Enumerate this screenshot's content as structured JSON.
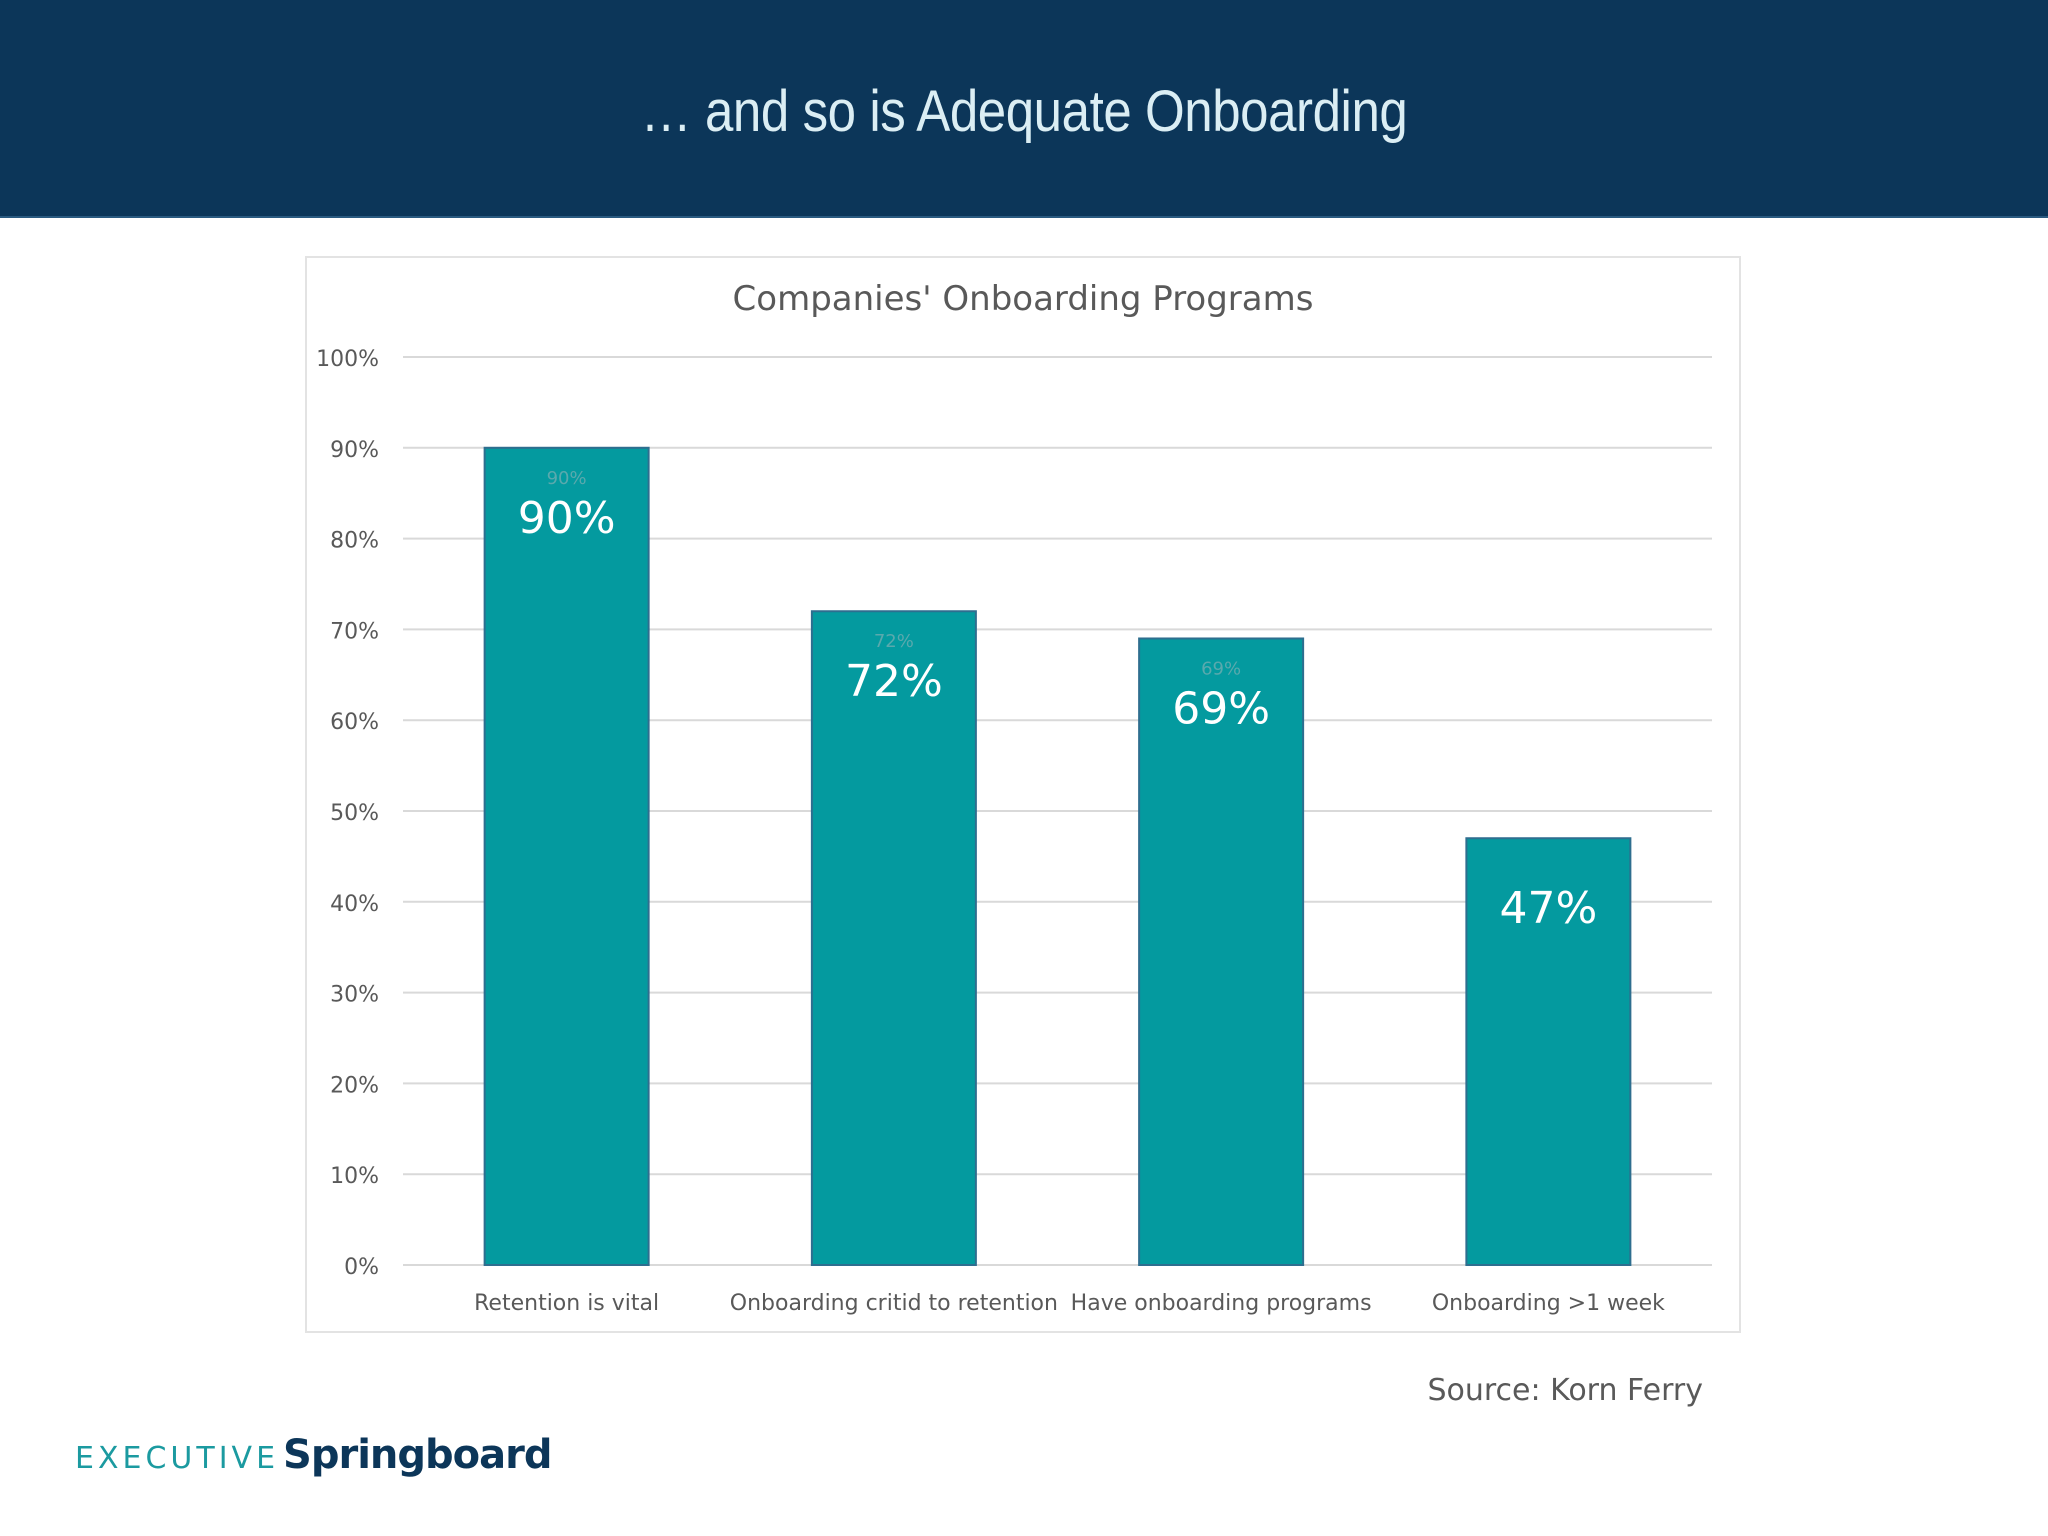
{
  "slide": {
    "title": "… and so is Adequate Onboarding",
    "source": "Source: Korn Ferry",
    "logo": {
      "word1": "EXECUTIVE",
      "word2": "Springboard"
    }
  },
  "colors": {
    "header_bg": "#0c3659",
    "bar": "#049a9f",
    "bar_edge": "#2e6e8f",
    "grid": "#d9d9d9",
    "axis_text": "#595959"
  },
  "chart_data": {
    "type": "bar",
    "title": "Companies' Onboarding Programs",
    "categories": [
      "Retention is vital",
      "Onboarding critid to retention",
      "Have onboarding programs",
      "Onboarding >1 week"
    ],
    "values": [
      90,
      72,
      69,
      47
    ],
    "data_labels": [
      "90%",
      "72%",
      "69%",
      "47%"
    ],
    "faint_labels": [
      "90%",
      "72%",
      "69%",
      ""
    ],
    "y_ticks": [
      0,
      10,
      20,
      30,
      40,
      50,
      60,
      70,
      80,
      90,
      100
    ],
    "y_tick_suffix": "%",
    "ylim": [
      0,
      100
    ],
    "grid": true,
    "xlabel": "",
    "ylabel": ""
  }
}
